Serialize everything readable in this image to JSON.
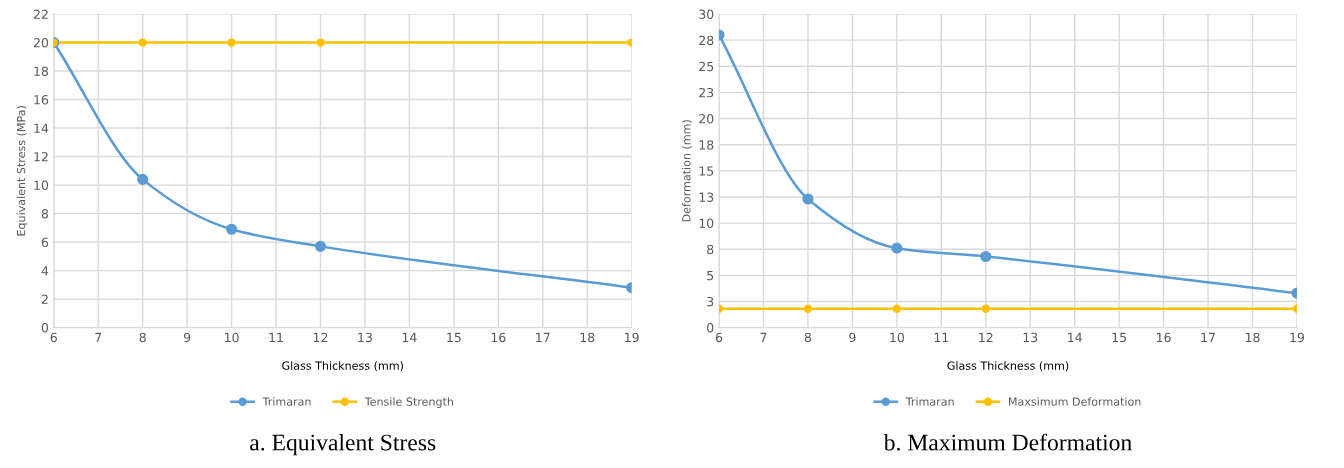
{
  "chart_data": [
    {
      "type": "line",
      "title": "a. Equivalent Stress",
      "xlabel": "Glass Thickness (mm)",
      "ylabel": "Equivalent Stress (MPa)",
      "x": [
        6,
        8,
        10,
        12,
        19
      ],
      "series": [
        {
          "name": "Trimaran",
          "color": "#5b9bd5",
          "values": [
            20,
            10.4,
            6.9,
            5.7,
            2.8
          ]
        },
        {
          "name": "Tensile Strength",
          "color": "#ffc000",
          "values": [
            20,
            20,
            20,
            20,
            20
          ]
        }
      ],
      "xlim": [
        6,
        19
      ],
      "xticks": [
        6,
        7,
        8,
        9,
        10,
        11,
        12,
        13,
        14,
        15,
        16,
        17,
        18,
        19
      ],
      "ylim": [
        0,
        22
      ],
      "yticks": [
        0,
        2,
        4,
        6,
        8,
        10,
        12,
        14,
        16,
        18,
        20,
        22
      ],
      "grid": true,
      "legend": "bottom",
      "marker": "circle",
      "line_style": "solid"
    },
    {
      "type": "line",
      "title": "b. Maximum Deformation",
      "xlabel": "Glass Thickness (mm)",
      "ylabel": "Deformation (mm)",
      "x": [
        6,
        8,
        10,
        12,
        19
      ],
      "series": [
        {
          "name": "Trimaran",
          "color": "#5b9bd5",
          "values": [
            28,
            12.3,
            7.6,
            6.8,
            3.3
          ]
        },
        {
          "name": "Maxsimum Deformation",
          "color": "#ffc000",
          "values": [
            1.8,
            1.8,
            1.8,
            1.8,
            1.8
          ]
        }
      ],
      "xlim": [
        6,
        19
      ],
      "xticks": [
        6,
        7,
        8,
        9,
        10,
        11,
        12,
        13,
        14,
        15,
        16,
        17,
        18,
        19
      ],
      "ylim": [
        0,
        30
      ],
      "yticks": [
        0,
        {
          "value": 2.5,
          "label": "3"
        },
        5,
        {
          "value": 7.5,
          "label": "8"
        },
        10,
        {
          "value": 12.5,
          "label": "13"
        },
        15,
        {
          "value": 17.5,
          "label": "18"
        },
        20,
        {
          "value": 22.5,
          "label": "23"
        },
        25,
        {
          "value": 27.5,
          "label": "28"
        },
        30
      ],
      "grid": true,
      "legend": "bottom",
      "marker": "circle",
      "line_style": "solid"
    }
  ]
}
